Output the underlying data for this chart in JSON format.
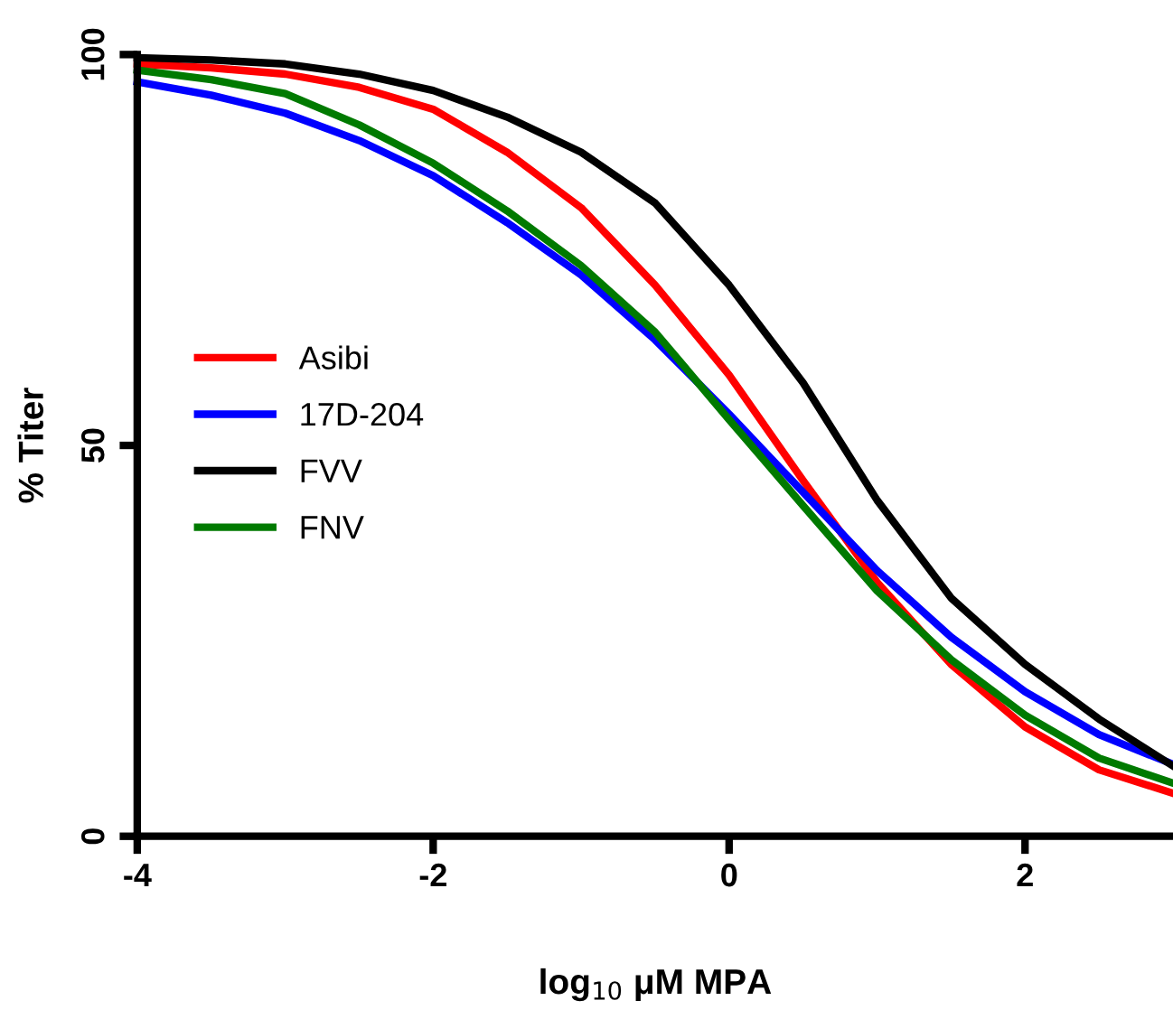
{
  "chart_data": {
    "type": "line",
    "xlabel": "log$_{10}$ μM MPA",
    "ylabel": "% Titer",
    "xlim": [
      -4,
      3
    ],
    "xticks": [
      -4,
      -2,
      0,
      2
    ],
    "ylim": [
      0,
      100
    ],
    "yticks": [
      0,
      50,
      100
    ],
    "x": [
      -4,
      -3.5,
      -3,
      -2.5,
      -2,
      -1.5,
      -1,
      -0.5,
      0,
      0.5,
      1,
      1.5,
      2,
      2.5,
      3
    ],
    "series": [
      {
        "name": "Asibi",
        "color": "#ff0000",
        "values": [
          98.8,
          98.3,
          97.5,
          95.8,
          93,
          87.5,
          80.4,
          70.5,
          59,
          45.5,
          32.5,
          22,
          14,
          8.5,
          5.5
        ]
      },
      {
        "name": "17D-204",
        "color": "#0000ff",
        "values": [
          96.5,
          94.8,
          92.5,
          89,
          84.5,
          78.5,
          71.8,
          63.5,
          54,
          44,
          34,
          25.5,
          18.5,
          13,
          9.2
        ]
      },
      {
        "name": "FVV",
        "color": "#000000",
        "values": [
          99.6,
          99.3,
          98.8,
          97.5,
          95.4,
          92,
          87.5,
          81,
          70.5,
          58,
          43,
          30.5,
          22,
          15,
          9
        ]
      },
      {
        "name": "FNV",
        "color": "#007a00",
        "values": [
          98,
          96.8,
          95,
          91,
          86.1,
          80,
          73,
          64.5,
          53.3,
          42.3,
          31.4,
          22.6,
          15.5,
          10,
          6.8
        ]
      }
    ],
    "legend": "left",
    "grid": false,
    "marker": "none",
    "line_style": "solid"
  }
}
